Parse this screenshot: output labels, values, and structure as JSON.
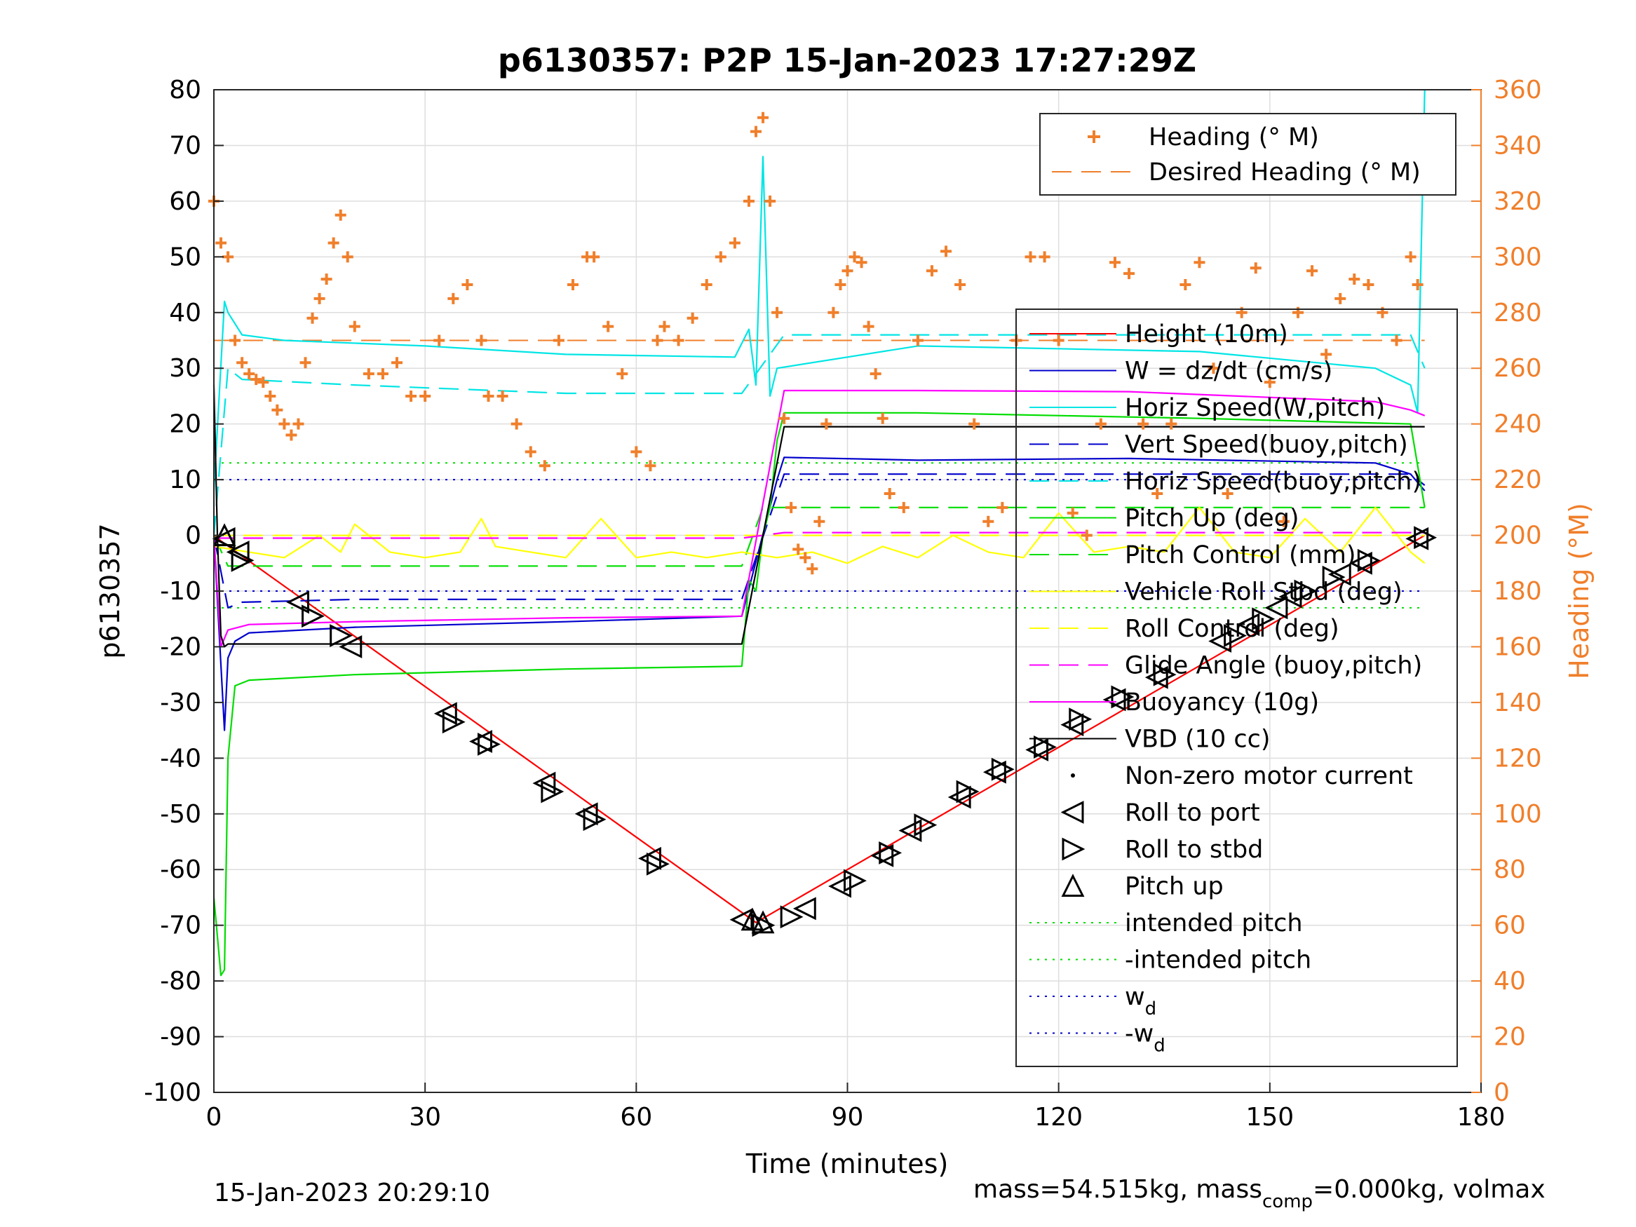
{
  "chart_data": {
    "type": "line",
    "title": "p6130357: P2P 15-Jan-2023 17:27:29Z",
    "xlabel": "Time (minutes)",
    "ylabel": "p6130357",
    "ylabel_right": "Heading (°M)",
    "xlim": [
      0,
      180
    ],
    "ylim": [
      -100,
      80
    ],
    "ylim_right": [
      0,
      360
    ],
    "x_ticks": [
      "0",
      "30",
      "60",
      "90",
      "120",
      "150",
      "180"
    ],
    "y_ticks": [
      "-100",
      "-90",
      "-80",
      "-70",
      "-60",
      "-50",
      "-40",
      "-30",
      "-20",
      "-10",
      "0",
      "10",
      "20",
      "30",
      "40",
      "50",
      "60",
      "70",
      "80"
    ],
    "y_ticks_right": [
      "0",
      "20",
      "40",
      "60",
      "80",
      "100",
      "120",
      "140",
      "160",
      "180",
      "200",
      "220",
      "240",
      "260",
      "280",
      "300",
      "320",
      "340",
      "360"
    ],
    "grid": true,
    "footer_left": "15-Jan-2023 20:29:10",
    "footer_right": {
      "a": "mass=54.515kg, mass",
      "sub": "comp",
      "b": "=0.000kg, volmax"
    },
    "heading_legend": [
      {
        "name": "Heading (° M)",
        "color": "#f07f2b",
        "style": "plus"
      },
      {
        "name": "Desired Heading (° M)",
        "color": "#f07f2b",
        "style": "dash"
      }
    ],
    "legend": [
      {
        "name": "Height (10m)",
        "color": "#ff0000",
        "style": "solid"
      },
      {
        "name": "W = dz/dt (cm/s)",
        "color": "#0000cc",
        "style": "solid"
      },
      {
        "name": "Horiz Speed(W,pitch)",
        "color": "#00e5e5",
        "style": "solid"
      },
      {
        "name": "Vert Speed(buoy,pitch)",
        "color": "#0000cc",
        "style": "dash"
      },
      {
        "name": "Horiz Speed(buoy,pitch)",
        "color": "#00e5e5",
        "style": "dash"
      },
      {
        "name": "Pitch Up (deg)",
        "color": "#00dd00",
        "style": "solid"
      },
      {
        "name": "Pitch Control (mm)",
        "color": "#00dd00",
        "style": "dash"
      },
      {
        "name": "Vehicle Roll Stbd (deg)",
        "color": "#ffff00",
        "style": "solid"
      },
      {
        "name": "Roll Control (deg)",
        "color": "#ffff00",
        "style": "dash"
      },
      {
        "name": "Glide Angle (buoy,pitch)",
        "color": "#ff00ff",
        "style": "dash"
      },
      {
        "name": "Buoyancy (10g)",
        "color": "#ff00ff",
        "style": "solid"
      },
      {
        "name": "VBD (10 cc)",
        "color": "#000000",
        "style": "solid"
      },
      {
        "name": "Non-zero motor current",
        "color": "#000000",
        "style": "dot"
      },
      {
        "name": "Roll to port",
        "color": "#000000",
        "style": "tri-left"
      },
      {
        "name": "Roll to stbd",
        "color": "#000000",
        "style": "tri-right"
      },
      {
        "name": "Pitch up",
        "color": "#000000",
        "style": "tri-up"
      },
      {
        "name": "intended pitch",
        "color": "#00dd00",
        "style": "dotted"
      },
      {
        "name": "-intended pitch",
        "color": "#00dd00",
        "style": "dotted"
      },
      {
        "name": "w",
        "sub": "d",
        "color": "#0000cc",
        "style": "dotted"
      },
      {
        "name": "-w",
        "sub": "d",
        "color": "#0000cc",
        "style": "dotted"
      }
    ],
    "series": [
      {
        "name": "Height (10m)",
        "color": "#ff0000",
        "x": [
          0,
          1,
          77,
          172
        ],
        "y": [
          0,
          -1,
          -69.5,
          0
        ]
      },
      {
        "name": "W = dz/dt (cm/s)",
        "color": "#0000cc",
        "x": [
          0,
          1.5,
          2,
          3,
          5,
          20,
          50,
          75,
          80,
          81,
          100,
          130,
          165,
          170,
          172
        ],
        "y": [
          0,
          -35,
          -22,
          -19,
          -17.5,
          -16.5,
          -15.5,
          -14.5,
          10,
          14,
          13.5,
          13.8,
          13,
          11,
          8
        ]
      },
      {
        "name": "Horiz Speed(W,pitch)",
        "color": "#00e5e5",
        "x": [
          0,
          1.5,
          2,
          4,
          10,
          30,
          50,
          74,
          76,
          77,
          78,
          79,
          80,
          100,
          140,
          165,
          170,
          171,
          172
        ],
        "y": [
          8,
          42,
          40,
          36,
          35,
          34,
          32.5,
          32,
          37,
          27,
          68,
          25,
          30,
          34,
          33,
          30,
          27,
          22,
          80
        ]
      },
      {
        "name": "Vert Speed(buoy,pitch)",
        "color": "#0000cc",
        "x": [
          0,
          2,
          4,
          20,
          50,
          75,
          81,
          100,
          130,
          170,
          172
        ],
        "y": [
          0,
          -13,
          -12,
          -11.5,
          -11.5,
          -11.5,
          11,
          11,
          11,
          11,
          9
        ]
      },
      {
        "name": "Horiz Speed(buoy,pitch)",
        "color": "#00e5e5",
        "x": [
          0,
          2,
          4,
          20,
          50,
          75,
          81,
          100,
          130,
          170,
          172
        ],
        "y": [
          0,
          30,
          28,
          27,
          25.5,
          25.5,
          36,
          36,
          36,
          36,
          30
        ]
      },
      {
        "name": "Pitch Up (deg)",
        "color": "#00dd00",
        "x": [
          0,
          1,
          1.5,
          2,
          3,
          5,
          20,
          50,
          75,
          76,
          77,
          78,
          79,
          80,
          81,
          100,
          140,
          170,
          172
        ],
        "y": [
          -65,
          -79,
          -78,
          -40,
          -27,
          -26,
          -25,
          -24,
          -23.5,
          -8,
          -10,
          0,
          5,
          17,
          22,
          22,
          21,
          20,
          5
        ]
      },
      {
        "name": "Pitch Control (mm)",
        "color": "#00dd00",
        "x": [
          0,
          2,
          5,
          75,
          78,
          81,
          172
        ],
        "y": [
          0,
          -5.5,
          -5.5,
          -5.5,
          5,
          5,
          5
        ]
      },
      {
        "name": "Vehicle Roll Stbd (deg)",
        "color": "#ffff00",
        "x": [
          0,
          5,
          10,
          15,
          18,
          20,
          25,
          30,
          35,
          38,
          40,
          45,
          50,
          55,
          60,
          65,
          70,
          75,
          80,
          85,
          90,
          95,
          100,
          105,
          110,
          115,
          120,
          125,
          130,
          135,
          140,
          145,
          150,
          155,
          160,
          165,
          170,
          172
        ],
        "y": [
          -2,
          -3,
          -4,
          0,
          -3,
          2,
          -3,
          -4,
          -3,
          3,
          -2,
          -3,
          -4,
          3,
          -4,
          -3,
          -4,
          -3,
          -4,
          -3,
          -5,
          -2,
          -4,
          0,
          -3,
          -4,
          4,
          -3,
          -2,
          -3,
          5,
          -3,
          -4,
          3,
          -3,
          5,
          -3,
          -5
        ]
      },
      {
        "name": "Roll Control (deg)",
        "color": "#ffff00",
        "x": [
          0,
          10,
          20,
          30,
          40,
          50,
          60,
          70,
          75,
          80,
          90,
          100,
          110,
          120,
          130,
          140,
          150,
          160,
          170,
          172
        ],
        "y": [
          0,
          0,
          0,
          0,
          0,
          0,
          0,
          0,
          0,
          0,
          0,
          0,
          0,
          0,
          0,
          0,
          0,
          0,
          0,
          0
        ]
      },
      {
        "name": "Glide Angle (buoy,pitch)",
        "color": "#ff00ff",
        "x": [
          0,
          75,
          81,
          172
        ],
        "y": [
          -0.5,
          -0.5,
          0.5,
          0.5
        ]
      },
      {
        "name": "Buoyancy (10g)",
        "color": "#ff00ff",
        "x": [
          0,
          1,
          2,
          5,
          20,
          50,
          75,
          81,
          100,
          130,
          165,
          170,
          172
        ],
        "y": [
          0,
          -20,
          -17,
          -16,
          -15.5,
          -14.8,
          -14.5,
          26,
          26,
          25.8,
          24,
          22.5,
          21.5
        ]
      },
      {
        "name": "VBD (10 cc)",
        "color": "#000000",
        "x": [
          0,
          0.5,
          1,
          1.5,
          2,
          5,
          20,
          50,
          75,
          81,
          100,
          130,
          160,
          170,
          172
        ],
        "y": [
          27,
          0,
          -18,
          -20,
          -19.5,
          -19.5,
          -19.5,
          -19.5,
          -19.5,
          19.5,
          19.5,
          19.5,
          19.5,
          19.5,
          19.5
        ]
      }
    ],
    "heading_data": {
      "x": [
        0,
        1,
        2,
        3,
        4,
        5,
        6,
        7,
        8,
        9,
        10,
        11,
        12,
        13,
        14,
        15,
        16,
        17,
        18,
        19,
        20,
        22,
        24,
        26,
        28,
        30,
        32,
        34,
        36,
        38,
        39,
        41,
        43,
        45,
        47,
        49,
        51,
        53,
        54,
        56,
        58,
        60,
        62,
        63,
        64,
        66,
        68,
        70,
        72,
        74,
        76,
        77,
        78,
        79,
        80,
        81,
        82,
        83,
        84,
        85,
        86,
        87,
        88,
        89,
        90,
        91,
        92,
        93,
        94,
        95,
        96,
        98,
        100,
        102,
        104,
        106,
        108,
        110,
        112,
        114,
        116,
        118,
        120,
        122,
        124,
        126,
        128,
        130,
        132,
        134,
        136,
        138,
        140,
        142,
        144,
        146,
        148,
        150,
        152,
        154,
        156,
        158,
        160,
        162,
        164,
        166,
        168,
        170,
        171
      ],
      "y": [
        320,
        305,
        300,
        270,
        262,
        258,
        256,
        255,
        250,
        245,
        240,
        236,
        240,
        262,
        278,
        285,
        292,
        305,
        315,
        300,
        275,
        258,
        258,
        262,
        250,
        250,
        270,
        285,
        290,
        270,
        250,
        250,
        240,
        230,
        225,
        270,
        290,
        300,
        300,
        275,
        258,
        230,
        225,
        270,
        275,
        270,
        278,
        290,
        300,
        305,
        320,
        345,
        350,
        320,
        280,
        242,
        210,
        195,
        192,
        188,
        205,
        240,
        280,
        290,
        295,
        300,
        298,
        275,
        258,
        242,
        215,
        210,
        270,
        295,
        302,
        290,
        240,
        205,
        210,
        270,
        300,
        300,
        270,
        208,
        200,
        240,
        298,
        294,
        240,
        215,
        240,
        290,
        298,
        260,
        215,
        280,
        296,
        255,
        205,
        280,
        295,
        265,
        285,
        292,
        290,
        280,
        270,
        300,
        290
      ]
    },
    "desired_heading": [
      270,
      270
    ],
    "markers": {
      "roll_to_port": {
        "x": [
          1.5,
          3.5,
          12,
          19.5,
          33,
          38,
          47,
          53,
          62,
          75,
          84,
          89,
          95,
          99,
          106,
          111,
          117,
          122,
          128,
          134,
          143,
          147,
          151,
          153,
          160,
          163,
          171
        ],
        "y": [
          -0.6,
          -3,
          -12,
          -20,
          -32,
          -37,
          -44.5,
          -50,
          -58,
          -69,
          -67,
          -63,
          -57.5,
          -53,
          -47,
          -42.5,
          -38.5,
          -34,
          -29.5,
          -25.5,
          -19,
          -16,
          -13,
          -11,
          -7,
          -5,
          -0.6
        ]
      },
      "roll_to_stbd": {
        "x": [
          4,
          14,
          18,
          34,
          39,
          48,
          54,
          63,
          78,
          82,
          91,
          96,
          101,
          107,
          112,
          118,
          123,
          129,
          135,
          145,
          149,
          155,
          159,
          164,
          172
        ],
        "y": [
          -4.5,
          -14.5,
          -18,
          -33.5,
          -37.5,
          -46,
          -51,
          -59,
          -70,
          -68.5,
          -62,
          -57,
          -52,
          -46,
          -42,
          -38,
          -33,
          -29,
          -25,
          -18,
          -15,
          -10,
          -7.5,
          -4.5,
          -0.4
        ]
      },
      "pitch_up": {
        "x": [
          1.5,
          76.5,
          78
        ],
        "y": [
          0,
          -69,
          -69.5
        ]
      }
    },
    "intended_pitch": [
      13,
      -13
    ],
    "w_d": [
      10,
      -10
    ]
  }
}
